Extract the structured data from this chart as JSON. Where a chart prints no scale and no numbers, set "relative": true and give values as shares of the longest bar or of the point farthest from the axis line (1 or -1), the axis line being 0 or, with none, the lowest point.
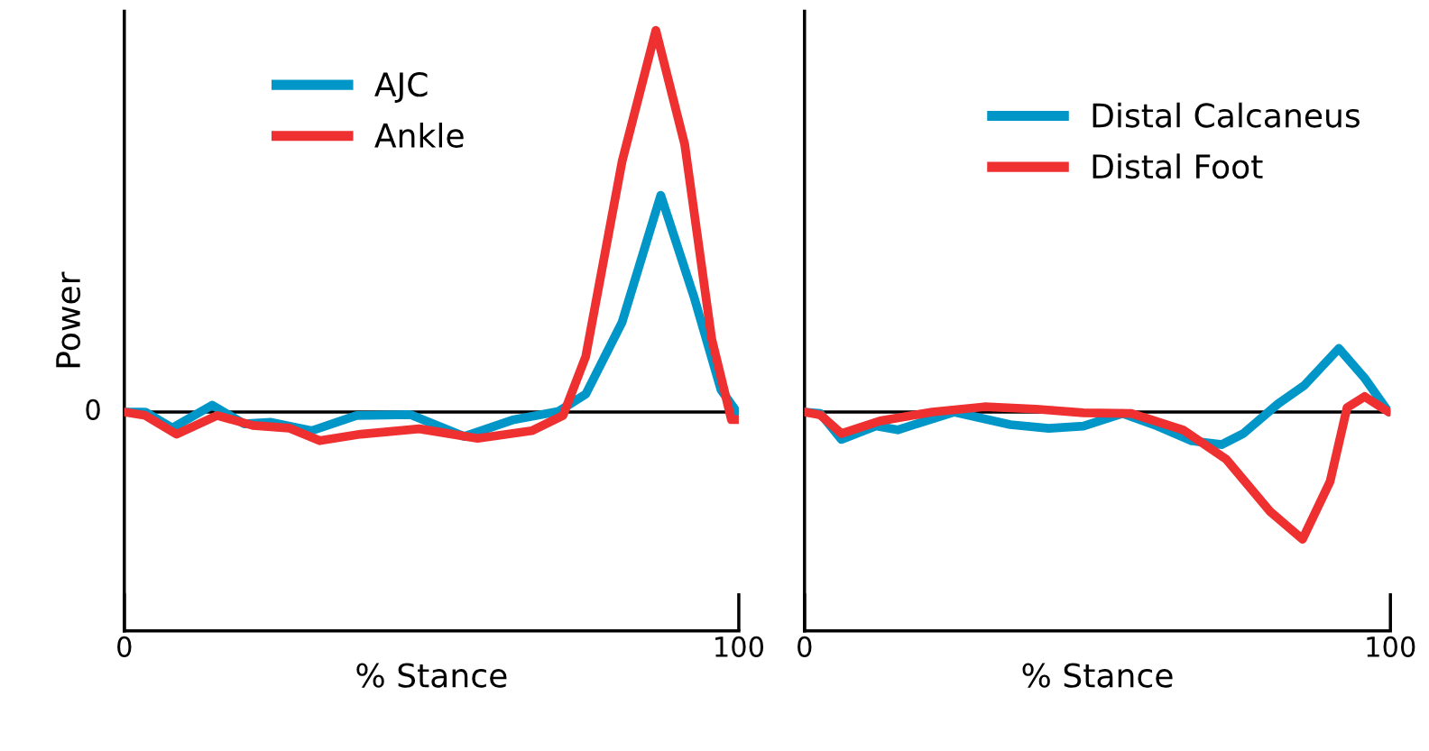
{
  "chart_data": [
    {
      "type": "line",
      "relative": true,
      "ylabel": "Power",
      "xlabel": "% Stance",
      "xlim": [
        0,
        100
      ],
      "xticks": [
        0,
        100
      ],
      "legend": "top left",
      "grid": false,
      "ref_lines": [
        {
          "axis": "y",
          "value": 0,
          "label": "0",
          "color": "#000000"
        }
      ],
      "series": [
        {
          "name": "AJC",
          "color": "#0096c8",
          "x": [
            0,
            3.4,
            7.8,
            14.3,
            19.5,
            23.9,
            30.5,
            37.8,
            46.6,
            55.3,
            63.4,
            70.7,
            75.1,
            81,
            87.3,
            92.7,
            97.1,
            99.7
          ],
          "values": [
            0,
            0,
            -0.042,
            0.018,
            -0.031,
            -0.027,
            -0.049,
            -0.009,
            -0.007,
            -0.064,
            -0.02,
            0.002,
            0.047,
            0.235,
            0.568,
            0.302,
            0.058,
            0
          ]
        },
        {
          "name": "Ankle",
          "color": "#ee3030",
          "x": [
            0,
            3.4,
            8.5,
            15.1,
            20.9,
            26.8,
            31.8,
            38.5,
            48,
            57.5,
            66.3,
            71.4,
            75.1,
            81,
            86.5,
            91.2,
            95.6,
            98.8,
            100
          ],
          "values": [
            0,
            -0.009,
            -0.058,
            -0.009,
            -0.035,
            -0.042,
            -0.075,
            -0.058,
            -0.044,
            -0.069,
            -0.049,
            -0.009,
            0.146,
            0.656,
            1.0,
            0.701,
            0.191,
            -0.02,
            -0.02
          ]
        }
      ]
    },
    {
      "type": "line",
      "relative": true,
      "xlabel": "% Stance",
      "xlim": [
        0,
        100
      ],
      "xticks": [
        0,
        100
      ],
      "legend": "top right",
      "grid": false,
      "ref_lines": [
        {
          "axis": "y",
          "value": 0,
          "label": null,
          "color": "#000000"
        }
      ],
      "series": [
        {
          "name": "Distal Calcaneus",
          "color": "#0096c8",
          "x": [
            0,
            2.7,
            6.3,
            12.2,
            15.9,
            25.5,
            35.1,
            41.7,
            47.6,
            54.3,
            60.2,
            66.1,
            71.2,
            74.9,
            80.8,
            85.3,
            91.2,
            95.6,
            99.7
          ],
          "values": [
            0,
            -0.012,
            -0.215,
            -0.11,
            -0.14,
            0,
            -0.099,
            -0.128,
            -0.11,
            -0.012,
            -0.11,
            -0.227,
            -0.256,
            -0.169,
            0.064,
            0.209,
            0.5,
            0.267,
            0
          ]
        },
        {
          "name": "Distal Foot",
          "color": "#ee3030",
          "x": [
            0,
            2.7,
            6.3,
            12.9,
            21.8,
            30.7,
            39.5,
            47.6,
            55.8,
            64.6,
            72,
            79.4,
            85,
            89.7,
            92.6,
            95.6,
            99.7
          ],
          "values": [
            0,
            -0.023,
            -0.169,
            -0.07,
            0,
            0.041,
            0.023,
            -0.006,
            -0.012,
            -0.14,
            -0.372,
            -0.779,
            -1,
            -0.547,
            0.035,
            0.122,
            0
          ]
        }
      ]
    }
  ]
}
